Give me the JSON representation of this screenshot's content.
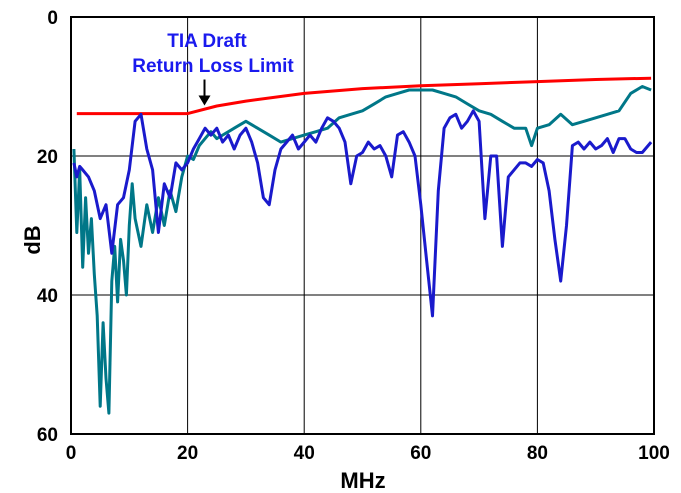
{
  "chart_data": {
    "type": "line",
    "title": "",
    "xlabel": "MHz",
    "ylabel": "dB",
    "xlim": [
      0,
      100
    ],
    "ylim": [
      0,
      60
    ],
    "y_inverted": true,
    "grid": true,
    "x_ticks": [
      0,
      20,
      40,
      60,
      80,
      100
    ],
    "y_ticks": [
      0,
      20,
      40,
      60
    ],
    "annotation": {
      "lines": [
        "TIA Draft",
        "Return Loss Limit"
      ],
      "color": "#1a1aee",
      "arrow_at": [
        22.9,
        13.6
      ]
    },
    "series": [
      {
        "color": "#ff0000",
        "x": [
          1,
          20,
          25,
          30,
          40,
          50,
          60,
          70,
          80,
          90,
          99.5
        ],
        "y": [
          13.9,
          13.9,
          12.8,
          12.1,
          11.0,
          10.3,
          9.9,
          9.6,
          9.3,
          9.0,
          8.8
        ]
      },
      {
        "color": "#007788",
        "x": [
          0.5,
          1,
          1.5,
          2,
          2.5,
          3,
          3.5,
          4,
          4.5,
          5,
          5.5,
          6,
          6.5,
          7,
          7.5,
          8,
          8.5,
          9,
          9.5,
          10,
          10.5,
          11,
          12,
          13,
          14,
          15,
          16,
          17,
          18,
          19,
          20,
          21,
          22,
          23,
          24,
          25,
          26,
          27,
          28,
          29,
          30,
          32,
          34,
          36,
          38,
          40,
          42,
          44,
          46,
          48,
          50,
          52,
          54,
          56,
          58,
          60,
          62,
          64,
          66,
          68,
          70,
          72,
          74,
          76,
          78,
          79,
          80,
          82,
          84,
          86,
          88,
          90,
          92,
          94,
          96,
          98,
          99.5
        ],
        "y": [
          19,
          31,
          22,
          36,
          26,
          34,
          29,
          37,
          43,
          56,
          44,
          52,
          57,
          38,
          33,
          41,
          32,
          35,
          40,
          30,
          24,
          29,
          33,
          27,
          31,
          26,
          30,
          25,
          28,
          23,
          20,
          20.5,
          18.5,
          17.5,
          16.5,
          17.5,
          17,
          16.5,
          16,
          15.5,
          15,
          16,
          17,
          18,
          17.5,
          17,
          16.5,
          16,
          14.5,
          14,
          13.5,
          12.5,
          11.5,
          11,
          10.5,
          10.5,
          10.5,
          11,
          11.5,
          12.5,
          13.5,
          14,
          15,
          16,
          16,
          18.5,
          16,
          15.5,
          14,
          15.5,
          15,
          14.5,
          14,
          13.5,
          11,
          10,
          10.5
        ]
      },
      {
        "color": "#1a1acc",
        "x": [
          0.5,
          1,
          1.5,
          2,
          3,
          4,
          5,
          6,
          7,
          8,
          9,
          10,
          11,
          12,
          13,
          14,
          15,
          16,
          17,
          18,
          19,
          20,
          21,
          22,
          23,
          24,
          25,
          26,
          27,
          28,
          29,
          30,
          31,
          32,
          33,
          34,
          35,
          36,
          37,
          38,
          39,
          40,
          41,
          42,
          43,
          44,
          45,
          46,
          47,
          48,
          49,
          50,
          51,
          52,
          53,
          54,
          55,
          56,
          57,
          58,
          59,
          60,
          61,
          62,
          63,
          64,
          65,
          66,
          67,
          68,
          69,
          70,
          71,
          72,
          73,
          74,
          75,
          76,
          77,
          78,
          79,
          80,
          81,
          82,
          83,
          84,
          85,
          86,
          87,
          88,
          89,
          90,
          91,
          92,
          93,
          94,
          95,
          96,
          97,
          98,
          99.5
        ],
        "y": [
          21,
          23,
          21.5,
          22,
          23,
          25,
          29,
          27,
          34,
          27,
          26,
          22,
          15,
          14,
          19,
          22,
          31,
          24,
          26,
          21,
          22,
          21,
          19,
          17.5,
          16,
          17,
          16,
          18,
          17,
          19,
          17,
          16,
          18,
          21,
          26,
          27,
          22,
          19,
          18,
          17,
          19,
          18,
          17,
          18,
          16,
          14.5,
          15,
          16,
          18,
          24,
          20,
          19.5,
          18,
          19,
          18.5,
          20,
          23,
          17,
          16.5,
          18,
          20,
          27,
          35,
          43,
          25,
          16,
          14.5,
          14,
          16,
          15,
          13.5,
          15,
          29,
          20,
          20,
          33,
          23,
          22,
          21,
          21,
          21.5,
          20.5,
          21,
          25,
          32,
          38,
          30,
          18.5,
          18,
          19,
          18,
          19,
          18.5,
          17.5,
          19.5,
          17.5,
          17.5,
          19,
          19.5,
          19.5,
          18
        ]
      }
    ]
  }
}
